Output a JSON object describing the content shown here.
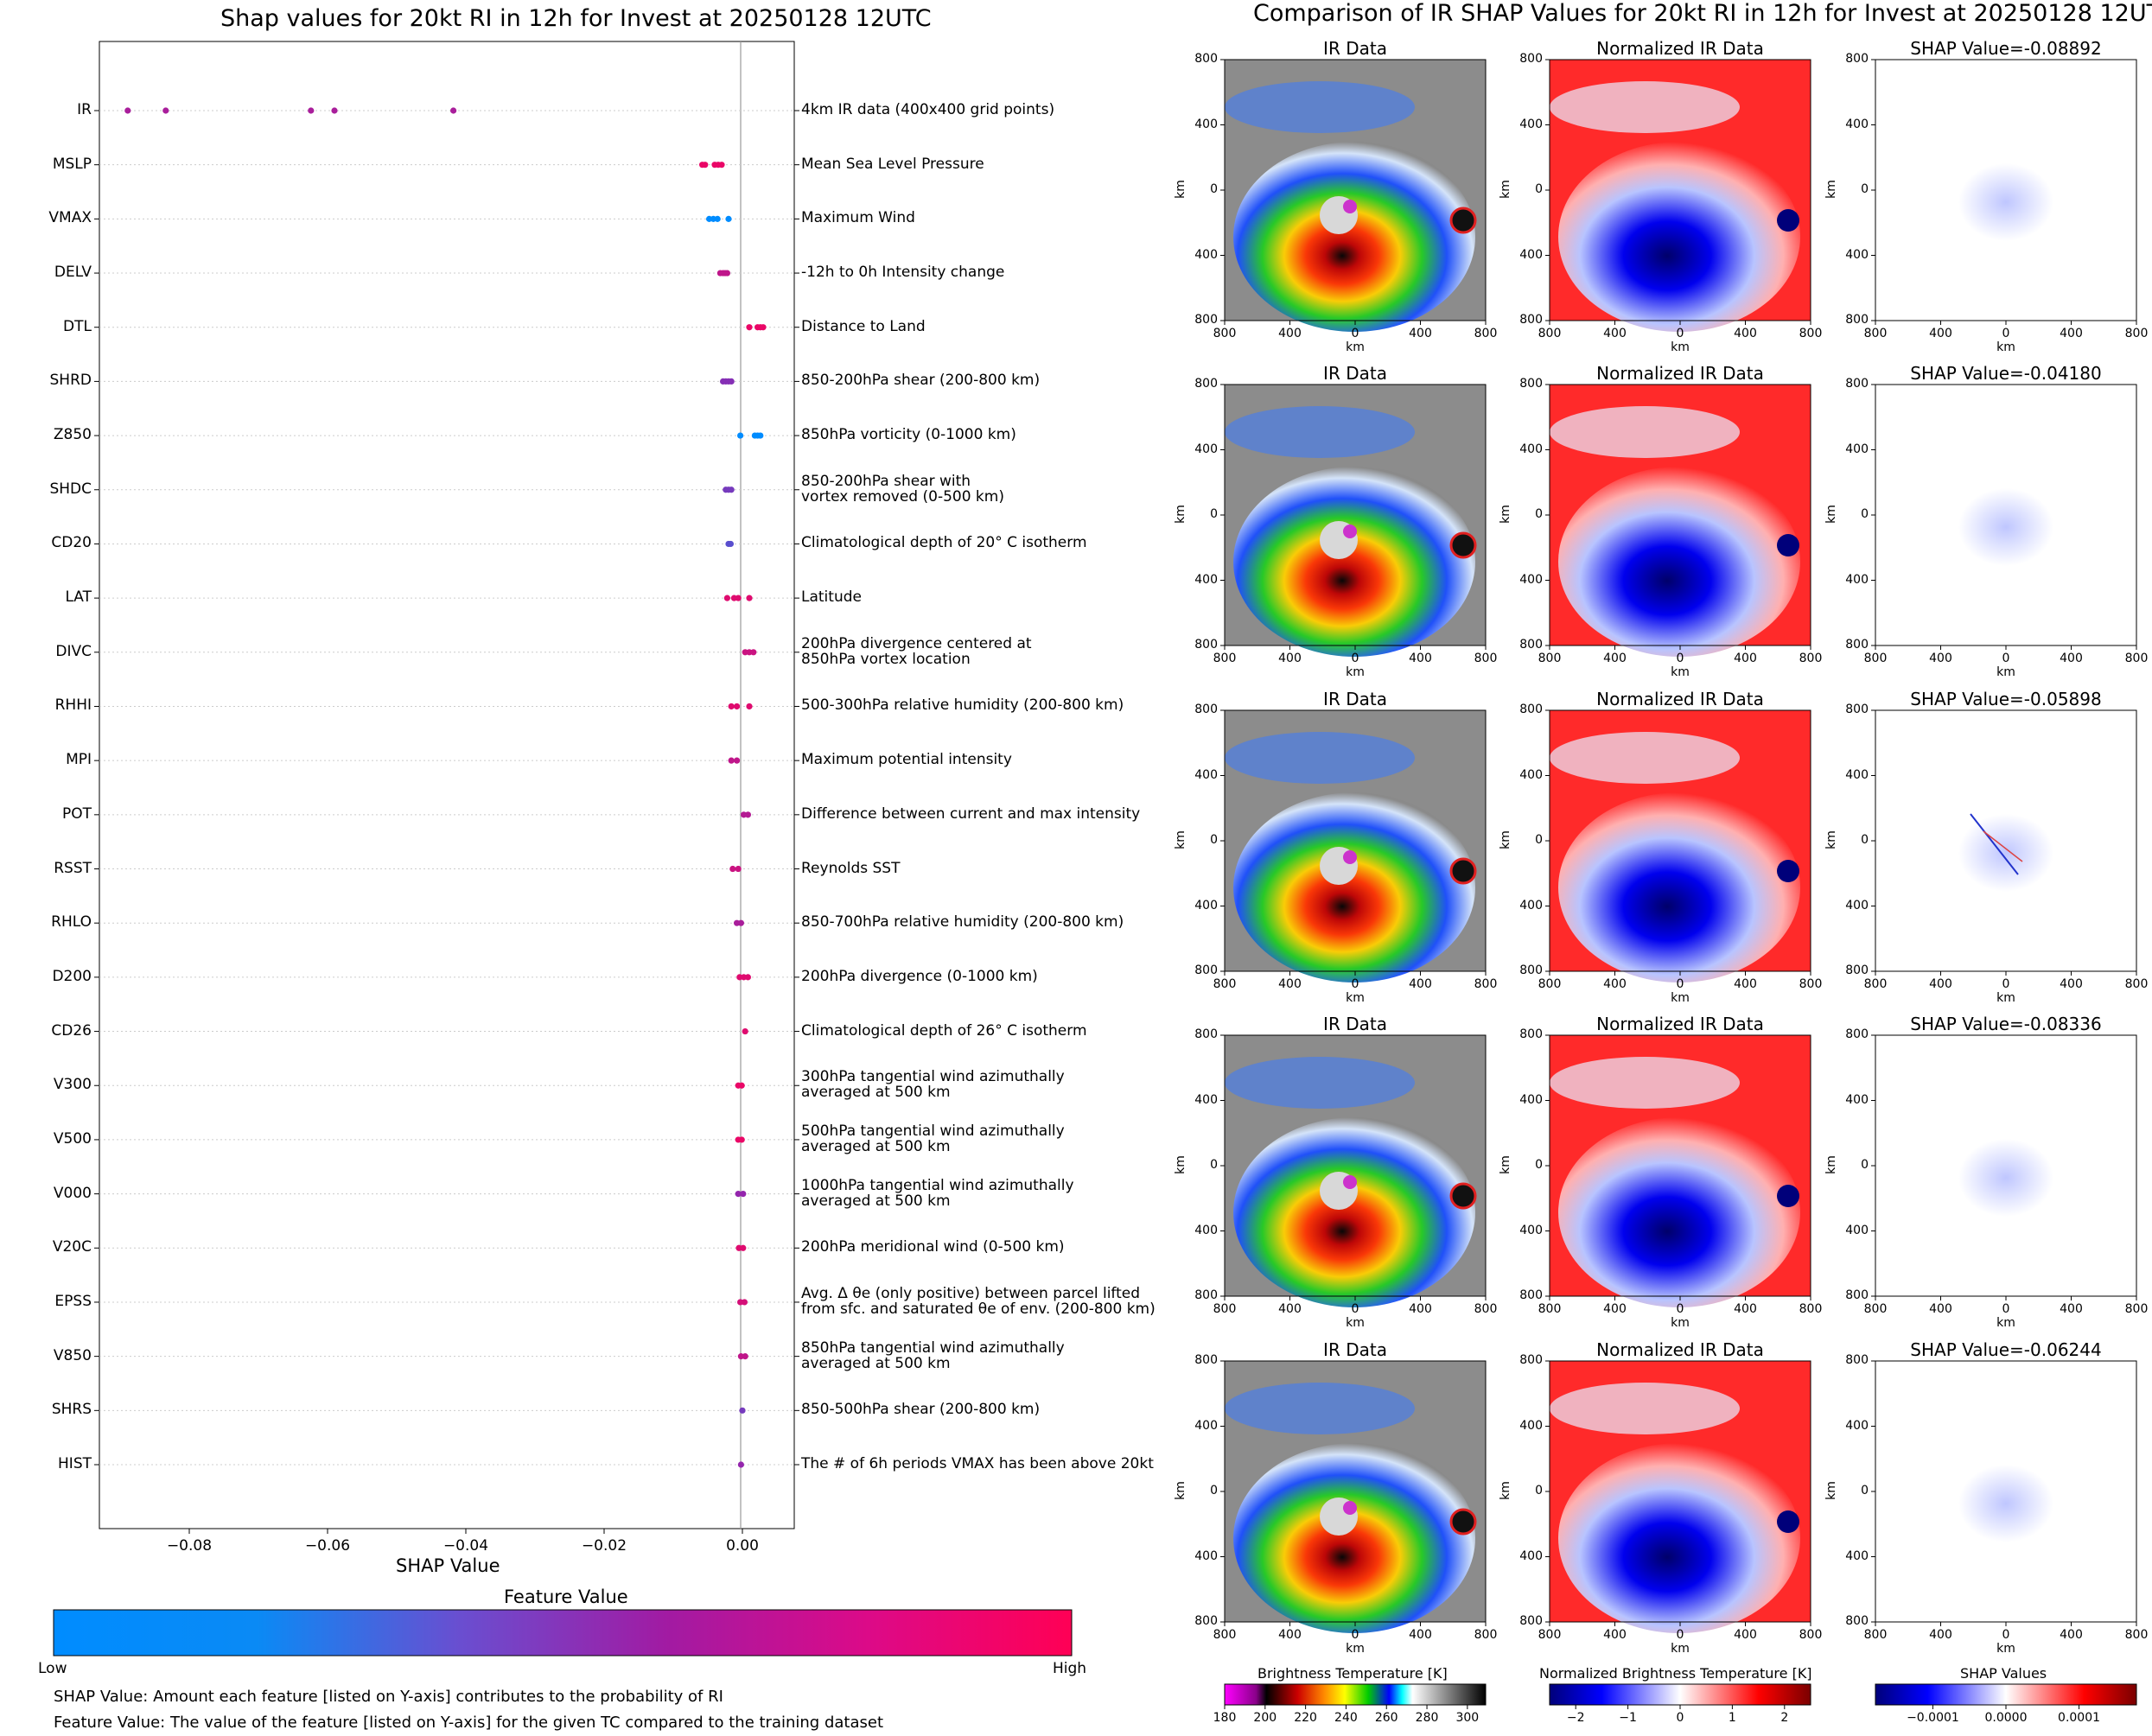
{
  "left": {
    "title": "Shap values for 20kt RI in 12h for Invest at 20250128 12UTC",
    "xlabel": "SHAP Value",
    "xticks": [
      "−0.08",
      "−0.06",
      "−0.04",
      "−0.02",
      "0.00"
    ],
    "colorbar_title": "Feature Value",
    "colorbar_low": "Low",
    "colorbar_high": "High",
    "note1": "SHAP Value: Amount each feature [listed on Y-axis] contributes to the probability of RI",
    "note2": "Feature Value: The value of the feature [listed on Y-axis] for the given TC compared to the training dataset"
  },
  "right": {
    "title": "Comparison of IR SHAP Values for 20kt RI in 12h for Invest at 20250128 12UTC",
    "col1_title": "IR Data",
    "col2_title": "Normalized IR Data",
    "shap_titles": [
      "SHAP Value=-0.08892",
      "SHAP Value=-0.04180",
      "SHAP Value=-0.05898",
      "SHAP Value=-0.08336",
      "SHAP Value=-0.06244"
    ],
    "axis_label": "km",
    "ticks": [
      "800",
      "400",
      "0",
      "400",
      "800"
    ],
    "cb1_title": "Brightness Temperature [K]",
    "cb1_ticks": [
      "180",
      "200",
      "220",
      "240",
      "260",
      "280",
      "300"
    ],
    "cb2_title": "Normalized Brightness Temperature [K]",
    "cb2_ticks": [
      "−2",
      "−1",
      "0",
      "1",
      "2"
    ],
    "cb3_title": "SHAP Values",
    "cb3_ticks": [
      "−0.0001",
      "0.0000",
      "0.0001"
    ]
  },
  "chart_data": {
    "type": "scatter",
    "title": "Shap values for 20kt RI in 12h for Invest at 20250128 12UTC",
    "xlabel": "SHAP Value",
    "xlim": [
      -0.093,
      0.0075
    ],
    "colors": {
      "low": "#008cff",
      "mid": "#9425ad",
      "high": "#ff0055"
    },
    "features": [
      {
        "name": "IR",
        "desc": "4km IR data (400x400 grid points)",
        "points": [
          [
            -0.0889,
            0.6
          ],
          [
            -0.0834,
            0.6
          ],
          [
            -0.0624,
            0.6
          ],
          [
            -0.059,
            0.6
          ],
          [
            -0.0418,
            0.6
          ]
        ]
      },
      {
        "name": "MSLP",
        "desc": "Mean Sea Level Pressure",
        "points": [
          [
            -0.0058,
            0.9
          ],
          [
            -0.0054,
            0.9
          ],
          [
            -0.004,
            0.9
          ],
          [
            -0.0035,
            0.9
          ],
          [
            -0.003,
            0.9
          ]
        ]
      },
      {
        "name": "VMAX",
        "desc": "Maximum Wind",
        "points": [
          [
            -0.0048,
            0.0
          ],
          [
            -0.0042,
            0.0
          ],
          [
            -0.0036,
            0.0
          ],
          [
            -0.002,
            0.0
          ]
        ]
      },
      {
        "name": "DELV",
        "desc": "-12h to 0h Intensity change",
        "points": [
          [
            -0.0032,
            0.7
          ],
          [
            -0.0028,
            0.7
          ],
          [
            -0.0025,
            0.7
          ],
          [
            -0.0022,
            0.7
          ]
        ]
      },
      {
        "name": "DTL",
        "desc": "Distance to Land",
        "points": [
          [
            0.001,
            0.9
          ],
          [
            0.0022,
            0.9
          ],
          [
            0.0026,
            0.9
          ],
          [
            0.003,
            0.9
          ]
        ]
      },
      {
        "name": "SHRD",
        "desc": "850-200hPa shear (200-800 km)",
        "points": [
          [
            -0.0028,
            0.45
          ],
          [
            -0.0024,
            0.45
          ],
          [
            -0.002,
            0.45
          ],
          [
            -0.0016,
            0.45
          ]
        ]
      },
      {
        "name": "Z850",
        "desc": "850hPa vorticity (0-1000 km)",
        "points": [
          [
            -0.0003,
            0.0
          ],
          [
            0.0018,
            0.0
          ],
          [
            0.0022,
            0.0
          ],
          [
            0.0026,
            0.0
          ]
        ]
      },
      {
        "name": "SHDC",
        "desc": "850-200hPa shear with\nvortex removed (0-500 km)",
        "points": [
          [
            -0.0024,
            0.4
          ],
          [
            -0.002,
            0.4
          ],
          [
            -0.0016,
            0.4
          ]
        ]
      },
      {
        "name": "CD20",
        "desc": "Climatological depth of 20° C isotherm",
        "points": [
          [
            -0.002,
            0.3
          ],
          [
            -0.0017,
            0.3
          ]
        ]
      },
      {
        "name": "LAT",
        "desc": "Latitude",
        "points": [
          [
            -0.0022,
            0.85
          ],
          [
            -0.0012,
            0.85
          ],
          [
            -0.0006,
            0.85
          ],
          [
            0.001,
            0.85
          ]
        ]
      },
      {
        "name": "DIVC",
        "desc": "200hPa divergence centered at\n850hPa vortex location",
        "points": [
          [
            0.0004,
            0.75
          ],
          [
            0.001,
            0.75
          ],
          [
            0.0016,
            0.75
          ]
        ]
      },
      {
        "name": "RHHI",
        "desc": "500-300hPa relative humidity (200-800 km)",
        "points": [
          [
            -0.0016,
            0.85
          ],
          [
            -0.0008,
            0.85
          ],
          [
            0.001,
            0.85
          ]
        ]
      },
      {
        "name": "MPI",
        "desc": "Maximum potential intensity",
        "points": [
          [
            -0.0016,
            0.7
          ],
          [
            -0.0008,
            0.7
          ]
        ]
      },
      {
        "name": "POT",
        "desc": "Difference between current and max intensity",
        "points": [
          [
            0.0002,
            0.65
          ],
          [
            0.0008,
            0.65
          ]
        ]
      },
      {
        "name": "RSST",
        "desc": "Reynolds SST",
        "points": [
          [
            -0.0014,
            0.75
          ],
          [
            -0.0006,
            0.75
          ]
        ]
      },
      {
        "name": "RHLO",
        "desc": "850-700hPa relative humidity (200-800 km)",
        "points": [
          [
            -0.0008,
            0.6
          ],
          [
            -0.0002,
            0.6
          ]
        ]
      },
      {
        "name": "D200",
        "desc": "200hPa divergence (0-1000 km)",
        "points": [
          [
            -0.0004,
            0.85
          ],
          [
            0.0002,
            0.85
          ],
          [
            0.0008,
            0.85
          ]
        ]
      },
      {
        "name": "CD26",
        "desc": "Climatological depth of 26° C isotherm",
        "points": [
          [
            0.0004,
            0.85
          ]
        ]
      },
      {
        "name": "V300",
        "desc": "300hPa tangential wind azimuthally\naveraged at 500 km",
        "points": [
          [
            -0.0006,
            0.9
          ],
          [
            -0.0001,
            0.9
          ]
        ]
      },
      {
        "name": "V500",
        "desc": "500hPa tangential wind azimuthally\naveraged at 500 km",
        "points": [
          [
            -0.0006,
            0.9
          ],
          [
            -0.0001,
            0.9
          ]
        ]
      },
      {
        "name": "V000",
        "desc": "1000hPa tangential wind azimuthally\naveraged at 500 km",
        "points": [
          [
            -0.0006,
            0.5
          ],
          [
            0.0001,
            0.5
          ]
        ]
      },
      {
        "name": "V20C",
        "desc": "200hPa meridional wind (0-500 km)",
        "points": [
          [
            -0.0005,
            0.85
          ],
          [
            0.0001,
            0.85
          ]
        ]
      },
      {
        "name": "EPSS",
        "desc": "Avg. Δ θe (only positive) between parcel lifted\nfrom sfc. and saturated θe of env. (200-800 km)",
        "points": [
          [
            -0.0003,
            0.8
          ],
          [
            0.0003,
            0.8
          ]
        ]
      },
      {
        "name": "V850",
        "desc": "850hPa tangential wind azimuthally\naveraged at 500 km",
        "points": [
          [
            -0.0002,
            0.7
          ],
          [
            0.0004,
            0.7
          ]
        ]
      },
      {
        "name": "SHRS",
        "desc": "850-500hPa shear (200-800 km)",
        "points": [
          [
            0.0,
            0.4
          ]
        ]
      },
      {
        "name": "HIST",
        "desc": "The # of 6h periods VMAX has been above 20kt",
        "points": [
          [
            -0.0002,
            0.5
          ]
        ]
      }
    ]
  }
}
